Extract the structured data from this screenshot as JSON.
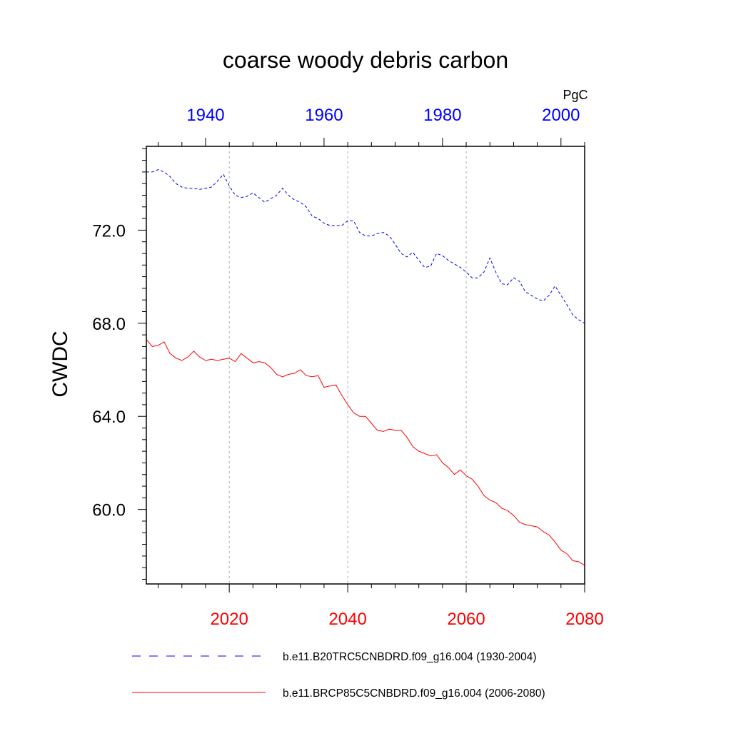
{
  "chart_data": {
    "type": "line",
    "title": "coarse woody debris carbon",
    "ylabel": "CWDC",
    "units": "PgC",
    "ylim": [
      56.8,
      75.6
    ],
    "yticks": [
      60.0,
      64.0,
      68.0,
      72.0
    ],
    "ytick_labels": [
      "60.0",
      "64.0",
      "68.0",
      "72.0"
    ],
    "grid": "vertical dotted",
    "legend_position": "bottom",
    "colors": {
      "historical": "#0000ff",
      "future": "#ff0000",
      "axis": "#000000",
      "grid": "#aaaaaa"
    },
    "x_top": {
      "range": [
        1930,
        2004
      ],
      "ticks": [
        1940,
        1960,
        1980,
        2000
      ],
      "tick_labels": [
        "1940",
        "1960",
        "1980",
        "2000"
      ],
      "color": "#0000ff"
    },
    "x_bottom": {
      "range": [
        2006,
        2080
      ],
      "ticks": [
        2020,
        2040,
        2060,
        2080
      ],
      "tick_labels": [
        "2020",
        "2040",
        "2060",
        "2080"
      ],
      "color": "#ff0000"
    },
    "series": [
      {
        "name": "b.e11.B20TRC5CNBDRD.f09_g16.004 (1930-2004)",
        "axis": "top",
        "style": "dashed",
        "x": [
          1930,
          1931,
          1932,
          1933,
          1934,
          1935,
          1936,
          1937,
          1938,
          1939,
          1940,
          1941,
          1942,
          1943,
          1944,
          1945,
          1946,
          1947,
          1948,
          1949,
          1950,
          1951,
          1952,
          1953,
          1954,
          1955,
          1956,
          1957,
          1958,
          1959,
          1960,
          1961,
          1962,
          1963,
          1964,
          1965,
          1966,
          1967,
          1968,
          1969,
          1970,
          1971,
          1972,
          1973,
          1974,
          1975,
          1976,
          1977,
          1978,
          1979,
          1980,
          1981,
          1982,
          1983,
          1984,
          1985,
          1986,
          1987,
          1988,
          1989,
          1990,
          1991,
          1992,
          1993,
          1994,
          1995,
          1996,
          1997,
          1998,
          1999,
          2000,
          2001,
          2002,
          2003,
          2004
        ],
        "values": [
          74.5,
          74.5,
          74.6,
          74.5,
          74.3,
          74.0,
          73.85,
          73.8,
          73.8,
          73.75,
          73.8,
          73.85,
          74.1,
          74.4,
          73.9,
          73.5,
          73.4,
          73.45,
          73.6,
          73.4,
          73.2,
          73.35,
          73.5,
          73.8,
          73.5,
          73.3,
          73.2,
          73.0,
          72.6,
          72.5,
          72.3,
          72.2,
          72.2,
          72.2,
          72.4,
          72.4,
          71.9,
          71.75,
          71.75,
          71.85,
          71.9,
          71.75,
          71.4,
          71.0,
          70.85,
          71.05,
          70.7,
          70.4,
          70.45,
          71.0,
          70.9,
          70.7,
          70.55,
          70.4,
          70.2,
          69.95,
          69.95,
          70.2,
          70.8,
          70.2,
          69.7,
          69.65,
          69.95,
          69.8,
          69.35,
          69.2,
          69.05,
          68.95,
          69.2,
          69.6,
          69.2,
          68.8,
          68.35,
          68.15,
          68.0
        ]
      },
      {
        "name": "b.e11.BRCP85C5CNBDRD.f09_g16.004 (2006-2080)",
        "axis": "bottom",
        "style": "solid",
        "x": [
          2006,
          2007,
          2008,
          2009,
          2010,
          2011,
          2012,
          2013,
          2014,
          2015,
          2016,
          2017,
          2018,
          2019,
          2020,
          2021,
          2022,
          2023,
          2024,
          2025,
          2026,
          2027,
          2028,
          2029,
          2030,
          2031,
          2032,
          2033,
          2034,
          2035,
          2036,
          2037,
          2038,
          2039,
          2040,
          2041,
          2042,
          2043,
          2044,
          2045,
          2046,
          2047,
          2048,
          2049,
          2050,
          2051,
          2052,
          2053,
          2054,
          2055,
          2056,
          2057,
          2058,
          2059,
          2060,
          2061,
          2062,
          2063,
          2064,
          2065,
          2066,
          2067,
          2068,
          2069,
          2070,
          2071,
          2072,
          2073,
          2074,
          2075,
          2076,
          2077,
          2078,
          2079,
          2080
        ],
        "values": [
          67.3,
          67.0,
          67.05,
          67.2,
          66.7,
          66.5,
          66.4,
          66.55,
          66.8,
          66.55,
          66.4,
          66.45,
          66.4,
          66.45,
          66.5,
          66.35,
          66.7,
          66.5,
          66.3,
          66.35,
          66.3,
          66.1,
          65.8,
          65.7,
          65.8,
          65.85,
          66.0,
          65.75,
          65.7,
          65.75,
          65.25,
          65.3,
          65.35,
          64.9,
          64.5,
          64.15,
          64.0,
          64.0,
          63.7,
          63.4,
          63.35,
          63.45,
          63.4,
          63.4,
          63.1,
          62.7,
          62.5,
          62.4,
          62.3,
          62.35,
          62.0,
          61.8,
          61.5,
          61.7,
          61.45,
          61.3,
          61.0,
          60.6,
          60.4,
          60.3,
          60.05,
          59.95,
          59.75,
          59.45,
          59.35,
          59.3,
          59.25,
          59.05,
          58.9,
          58.6,
          58.25,
          58.1,
          57.8,
          57.75,
          57.6
        ]
      }
    ]
  }
}
